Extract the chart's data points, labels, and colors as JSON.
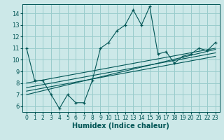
{
  "xlabel": "Humidex (Indice chaleur)",
  "bg_color": "#cce8e8",
  "grid_color": "#99cccc",
  "line_color": "#005555",
  "xlim": [
    -0.5,
    23.5
  ],
  "ylim": [
    5.5,
    14.8
  ],
  "xticks": [
    0,
    1,
    2,
    3,
    4,
    5,
    6,
    7,
    8,
    9,
    10,
    11,
    12,
    13,
    14,
    15,
    16,
    17,
    18,
    19,
    20,
    21,
    22,
    23
  ],
  "yticks": [
    6,
    7,
    8,
    9,
    10,
    11,
    12,
    13,
    14
  ],
  "main_x": [
    0,
    1,
    2,
    3,
    4,
    5,
    6,
    7,
    8,
    9,
    10,
    11,
    12,
    13,
    14,
    15,
    16,
    17,
    18,
    19,
    20,
    21,
    22,
    23
  ],
  "main_y": [
    11.0,
    8.2,
    8.2,
    7.0,
    5.8,
    7.0,
    6.3,
    6.3,
    8.2,
    11.0,
    11.5,
    12.5,
    13.0,
    14.3,
    13.0,
    14.6,
    10.5,
    10.7,
    9.7,
    10.3,
    10.5,
    11.0,
    10.8,
    11.5
  ],
  "trend1_x": [
    0,
    23
  ],
  "trend1_y": [
    8.0,
    11.0
  ],
  "trend2_x": [
    0,
    23
  ],
  "trend2_y": [
    7.6,
    10.6
  ],
  "trend3_x": [
    0,
    23
  ],
  "trend3_y": [
    7.3,
    10.3
  ],
  "trend4_x": [
    0,
    23
  ],
  "trend4_y": [
    7.0,
    10.9
  ],
  "tick_fontsize": 5.5,
  "xlabel_fontsize": 7
}
